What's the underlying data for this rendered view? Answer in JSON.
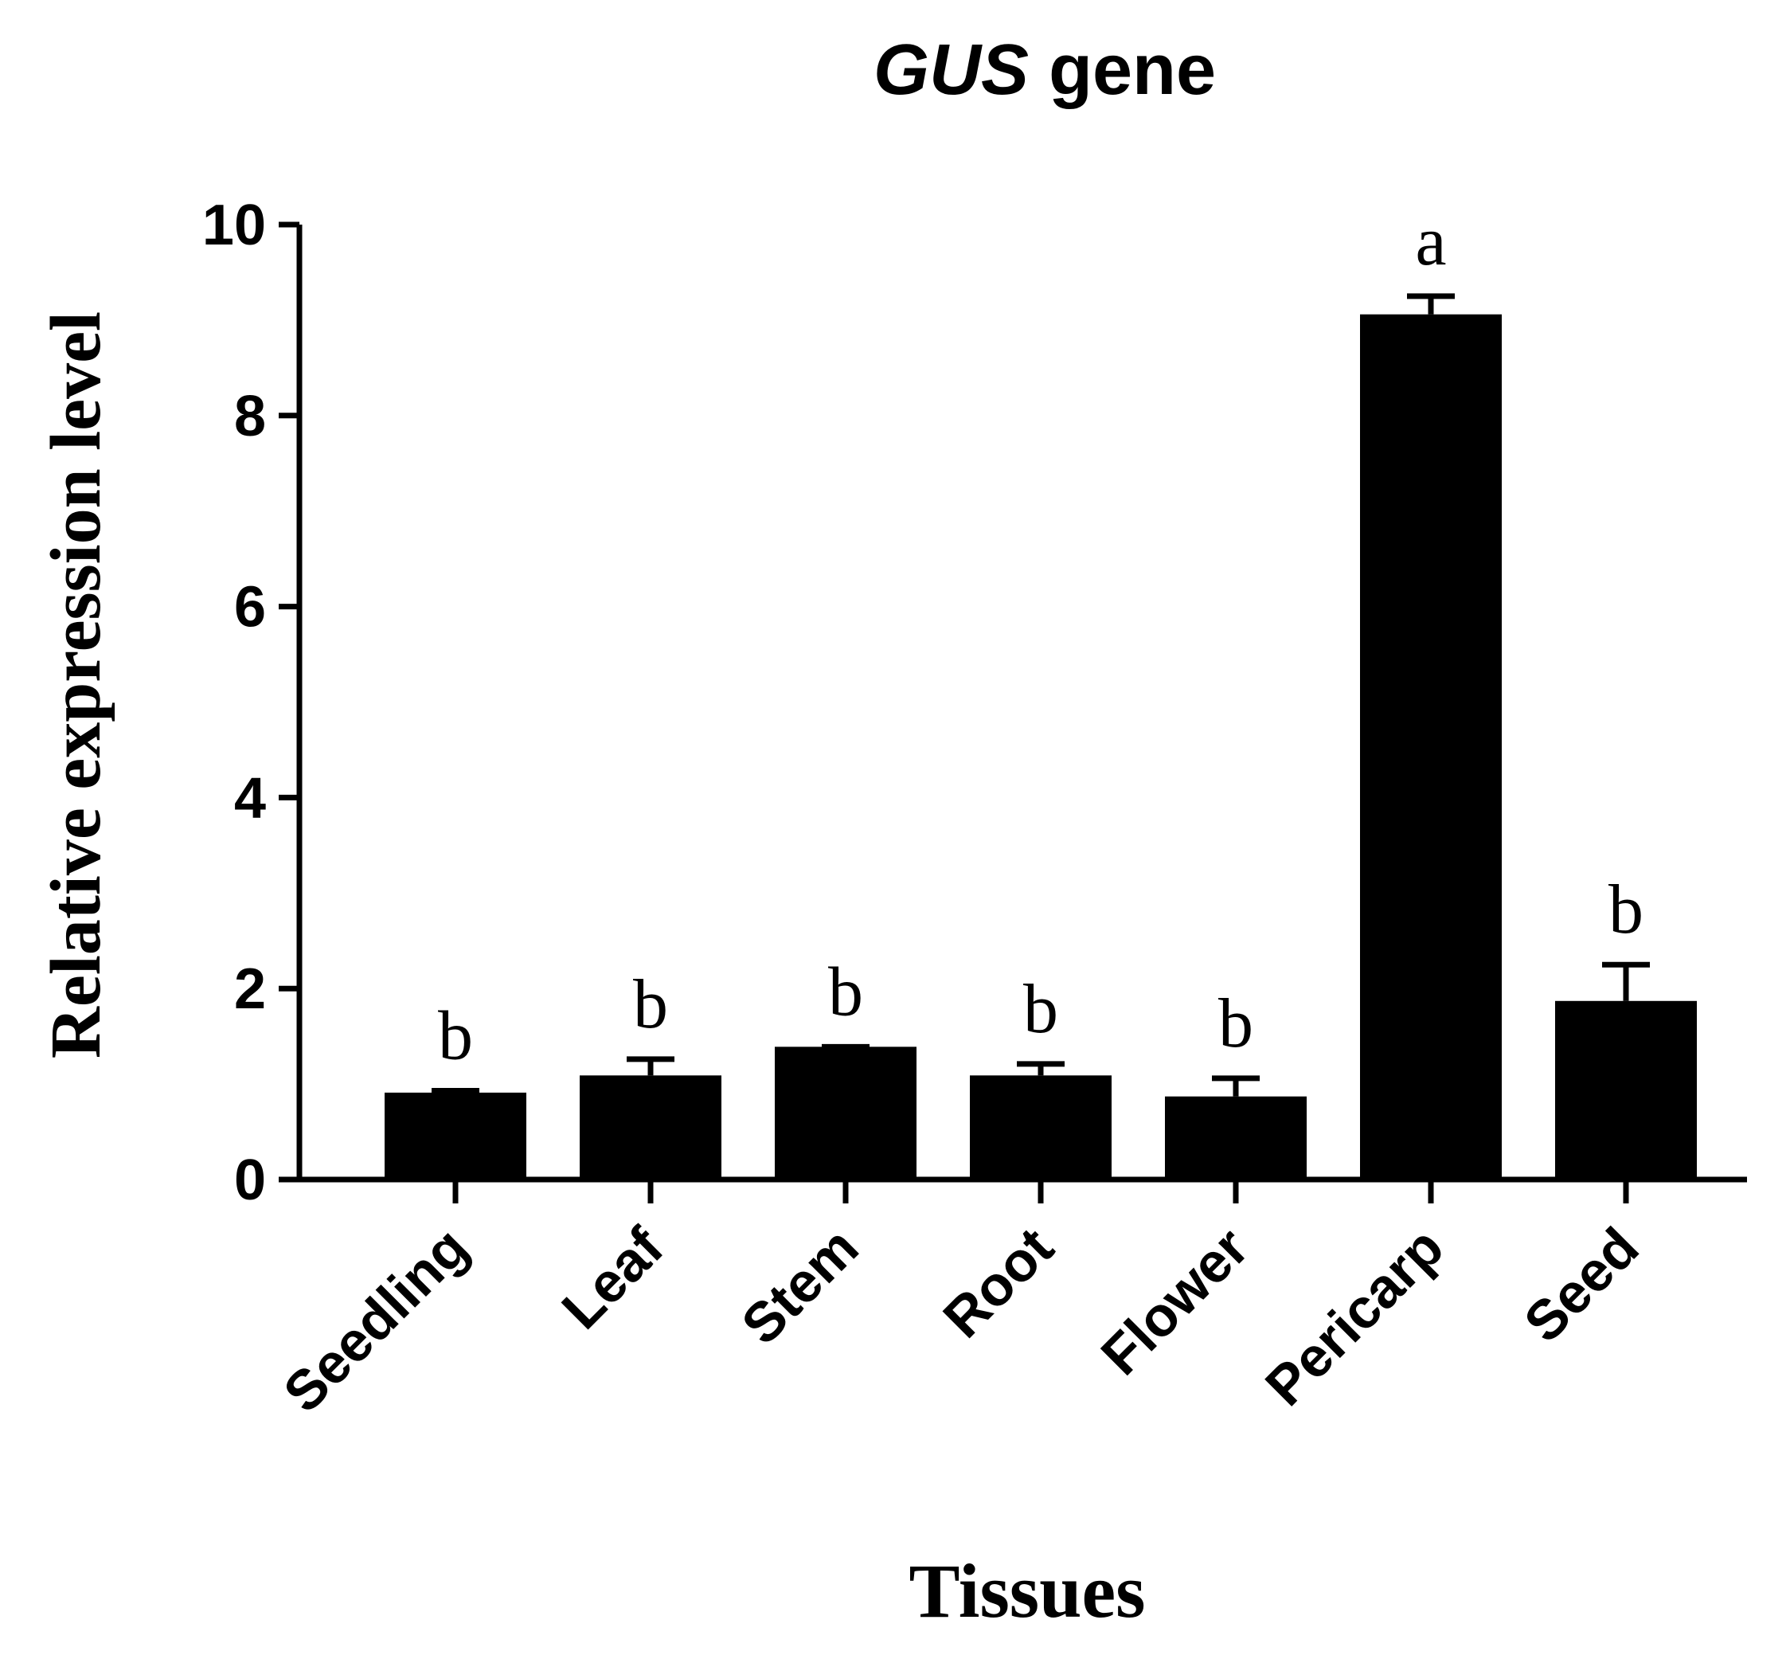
{
  "chart_data": {
    "type": "bar",
    "title": [
      "GUS",
      "gene"
    ],
    "x_label": "Tissues",
    "y_label": "Relative expression level",
    "categories": [
      "Seedling",
      "Leaf",
      "Stem",
      "Root",
      "Flower",
      "Pericarp",
      "Seed"
    ],
    "values": [
      0.91,
      1.09,
      1.39,
      1.09,
      0.87,
      9.06,
      1.87
    ],
    "errors": [
      0.02,
      0.17,
      0,
      0.12,
      0.19,
      0.19,
      0.38
    ],
    "annotations": [
      "b",
      "b",
      "b",
      "b",
      "b",
      "a",
      "b"
    ],
    "color": "#000000",
    "ylim": [
      0,
      10
    ],
    "yticks": [
      0,
      2,
      4,
      6,
      8,
      10
    ]
  }
}
